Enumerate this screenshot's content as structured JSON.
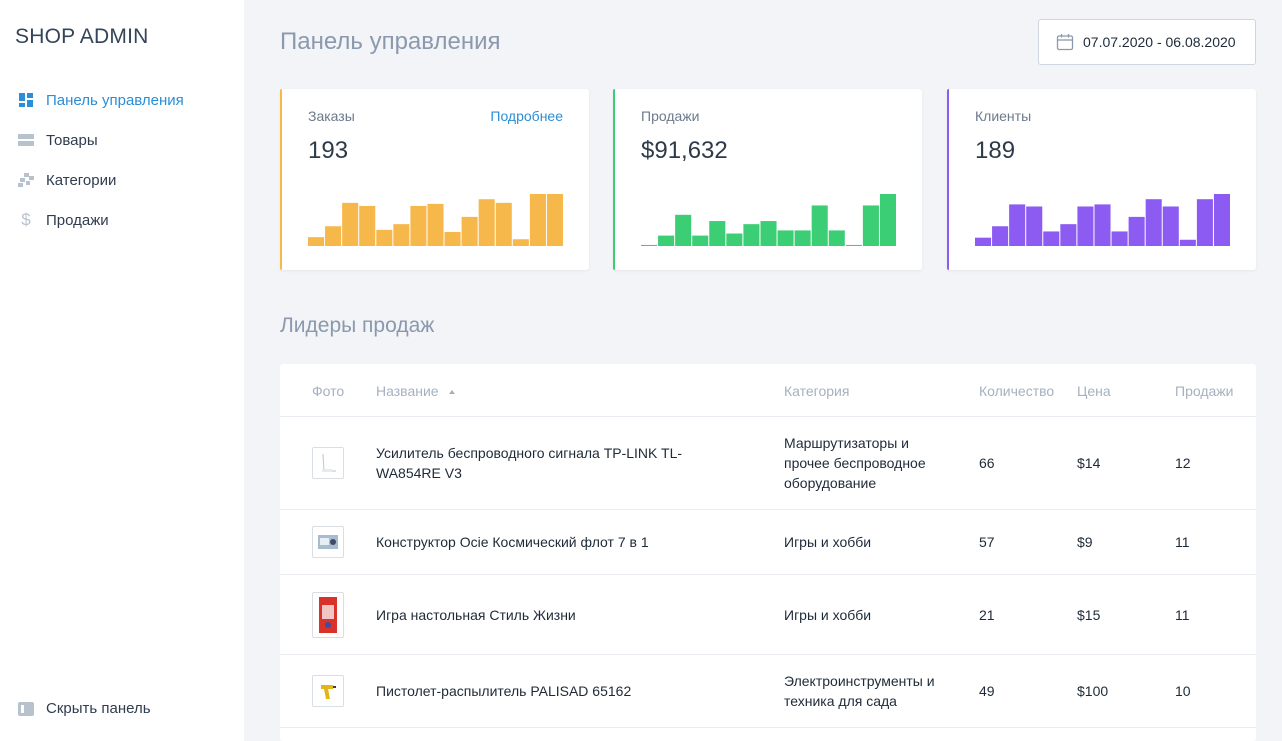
{
  "sidebar": {
    "brand": "SHOP ADMIN",
    "items": [
      {
        "label": "Панель управления",
        "icon": "dashboard-icon",
        "active": true
      },
      {
        "label": "Товары",
        "icon": "products-icon",
        "active": false
      },
      {
        "label": "Категории",
        "icon": "categories-icon",
        "active": false
      },
      {
        "label": "Продажи",
        "icon": "dollar-icon",
        "active": false
      }
    ],
    "hide_label": "Скрыть панель"
  },
  "header": {
    "title": "Панель управления",
    "date_range": "07.07.2020 - 06.08.2020"
  },
  "cards": [
    {
      "label": "Заказы",
      "value": "193",
      "link": "Подробнее",
      "color": "#f7b84b",
      "bars": [
        0.17,
        0.38,
        0.83,
        0.77,
        0.31,
        0.42,
        0.77,
        0.81,
        0.27,
        0.56,
        0.9,
        0.83,
        0.13,
        1.0,
        1.0
      ]
    },
    {
      "label": "Продажи",
      "value": "$91,632",
      "link": "",
      "color": "#3cce74",
      "bars": [
        0.02,
        0.2,
        0.6,
        0.2,
        0.48,
        0.24,
        0.42,
        0.48,
        0.3,
        0.3,
        0.78,
        0.3,
        0.02,
        0.78,
        1.0
      ]
    },
    {
      "label": "Клиенты",
      "value": "189",
      "link": "",
      "color": "#8c5cf2",
      "bars": [
        0.16,
        0.38,
        0.8,
        0.76,
        0.28,
        0.42,
        0.76,
        0.8,
        0.28,
        0.56,
        0.9,
        0.76,
        0.12,
        0.9,
        1.0
      ]
    }
  ],
  "top_sales": {
    "title": "Лидеры продаж",
    "columns": {
      "photo": "Фото",
      "name": "Название",
      "category": "Категория",
      "qty": "Количество",
      "price": "Цена",
      "sales": "Продажи"
    },
    "rows": [
      {
        "name": "Усилитель беспроводного сигнала TP-LINK TL-WA854RE V3",
        "category": "Маршрутизаторы и прочее беспроводное оборудование",
        "qty": "66",
        "price": "$14",
        "sales": "12",
        "thumb": "router-thumb-icon"
      },
      {
        "name": "Конструктор Ocie Космический флот 7 в 1",
        "category": "Игры и хобби",
        "qty": "57",
        "price": "$9",
        "sales": "11",
        "thumb": "toy-box-thumb-icon"
      },
      {
        "name": "Игра настольная Стиль Жизни",
        "category": "Игры и хобби",
        "qty": "21",
        "price": "$15",
        "sales": "11",
        "thumb": "board-game-thumb-icon"
      },
      {
        "name": "Пистолет-распылитель PALISAD 65162",
        "category": "Электроинструменты и техника для сада",
        "qty": "49",
        "price": "$100",
        "sales": "10",
        "thumb": "spray-gun-thumb-icon"
      }
    ]
  }
}
